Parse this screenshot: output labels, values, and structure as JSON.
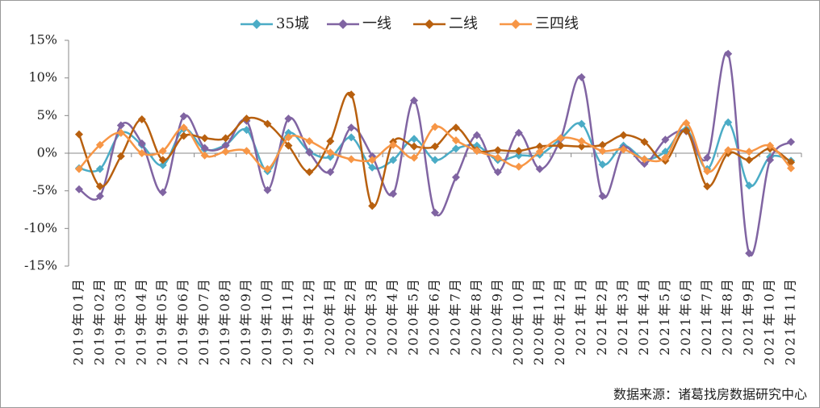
{
  "chart_data": {
    "type": "line",
    "categories": [
      "2019年01月",
      "2019年02月",
      "2019年03月",
      "2019年04月",
      "2019年05月",
      "2019年06月",
      "2019年07月",
      "2019年08月",
      "2019年09月",
      "2019年10月",
      "2019年11月",
      "2019年12月",
      "2020年1月",
      "2020年2月",
      "2020年3月",
      "2020年4月",
      "2020年5月",
      "2020年6月",
      "2020年7月",
      "2020年8月",
      "2020年9月",
      "2020年10月",
      "2020年11月",
      "2020年12月",
      "2021年1月",
      "2021年2月",
      "2021年3月",
      "2021年4月",
      "2021年5月",
      "2021年6月",
      "2021年7月",
      "2021年8月",
      "2021年9月",
      "2021年10月",
      "2021年11月"
    ],
    "series": [
      {
        "name": "35城",
        "color": "#4bacc6",
        "values": [
          -2.0,
          -2.1,
          2.7,
          1.1,
          -1.6,
          3.2,
          0.5,
          1.1,
          3.1,
          -2.4,
          2.7,
          0.2,
          -0.5,
          2.1,
          -1.9,
          -0.9,
          1.9,
          -0.9,
          0.6,
          1.0,
          -0.9,
          -0.3,
          -0.2,
          1.9,
          3.9,
          -1.5,
          1.0,
          -0.8,
          0.2,
          3.2,
          -2.1,
          4.1,
          -4.3,
          -0.5,
          -1.0
        ]
      },
      {
        "name": "一线",
        "color": "#8064a2",
        "values": [
          -4.8,
          -5.7,
          3.7,
          1.3,
          -5.2,
          4.9,
          0.7,
          1.0,
          4.3,
          -4.9,
          4.6,
          0.1,
          -2.5,
          3.4,
          -0.4,
          -5.4,
          7.0,
          -7.9,
          -3.2,
          2.4,
          -2.5,
          2.7,
          -2.1,
          1.9,
          10.1,
          -5.7,
          0.7,
          -1.4,
          1.8,
          2.9,
          -0.6,
          13.2,
          -13.3,
          -0.9,
          1.5
        ]
      },
      {
        "name": "二线",
        "color": "#b8600f",
        "values": [
          2.5,
          -4.4,
          -0.4,
          4.5,
          -0.9,
          2.3,
          2.0,
          2.0,
          4.6,
          3.9,
          1.0,
          -2.5,
          1.6,
          7.8,
          -7.0,
          1.5,
          0.9,
          0.9,
          3.4,
          0.4,
          0.4,
          0.3,
          0.9,
          1.0,
          0.9,
          1.1,
          2.4,
          1.5,
          -1.0,
          3.0,
          -4.4,
          0.0,
          -0.9,
          0.6,
          -1.2
        ]
      },
      {
        "name": "三四线",
        "color": "#f79646",
        "values": [
          -2.1,
          1.1,
          2.7,
          0.0,
          0.3,
          3.4,
          -0.3,
          0.2,
          0.3,
          -2.1,
          2.1,
          1.6,
          0.1,
          -0.8,
          -0.9,
          1.1,
          -0.6,
          3.5,
          1.7,
          0.3,
          -0.6,
          -1.8,
          0.2,
          2.0,
          1.6,
          0.3,
          0.5,
          -0.8,
          -0.6,
          4.0,
          -2.4,
          0.4,
          0.2,
          1.0,
          -2.0
        ]
      }
    ],
    "ylim": [
      -15,
      15
    ],
    "yticks": [
      {
        "value": 15,
        "label": "15%"
      },
      {
        "value": 10,
        "label": "10%"
      },
      {
        "value": 5,
        "label": "5%"
      },
      {
        "value": 0,
        "label": "0%"
      },
      {
        "value": -5,
        "label": "-5%"
      },
      {
        "value": -10,
        "label": "-10%"
      },
      {
        "value": -15,
        "label": "-15%"
      }
    ],
    "legend": "top",
    "source": "数据来源：诸葛找房数据研究中心"
  }
}
